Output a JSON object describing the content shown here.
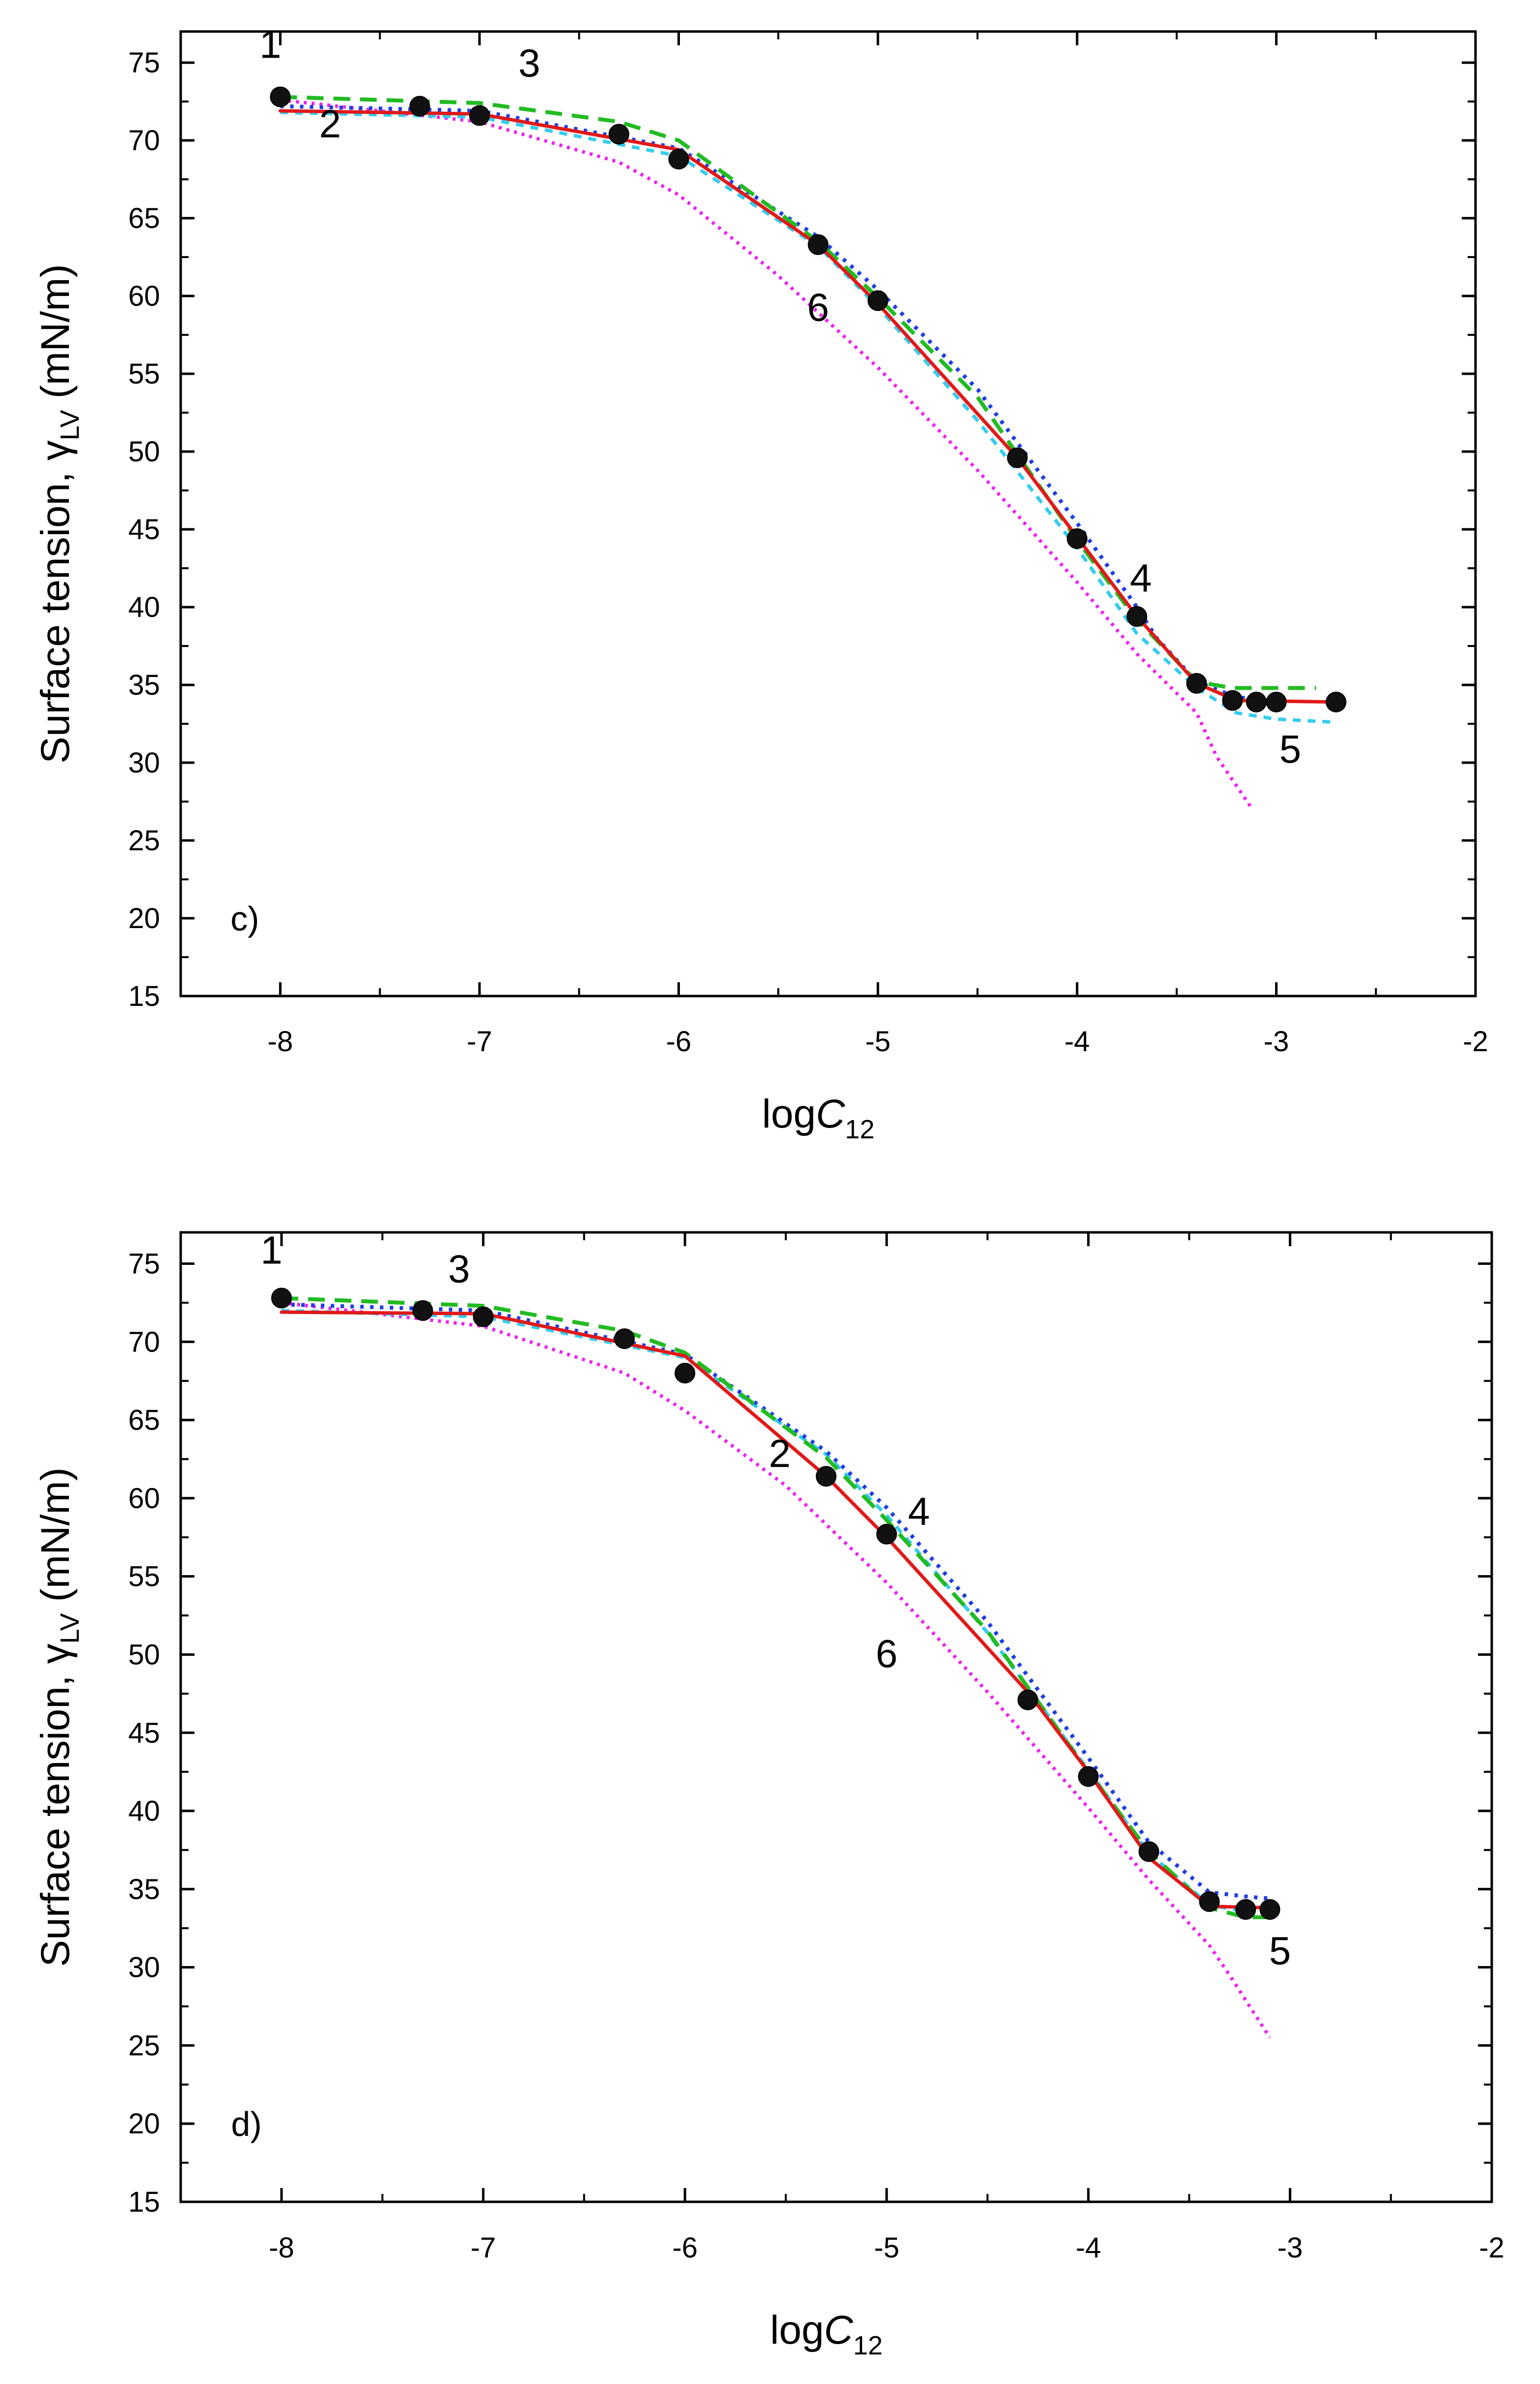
{
  "chart_data": [
    {
      "type": "line",
      "panel": "c)",
      "xlabel_main": "log",
      "xlabel_var": "C",
      "xlabel_sub": "12",
      "ylabel_main": "Surface tension, γ",
      "ylabel_sub": "LV",
      "ylabel_unit": " (mN/m)",
      "xlim": [
        -8.5,
        -2
      ],
      "ylim": [
        15,
        77
      ],
      "xticks": [
        -8,
        -7,
        -6,
        -5,
        -4,
        -3,
        -2
      ],
      "xtick_labels": [
        "-8",
        "-7",
        "-6",
        "-5",
        "-4",
        "-3",
        "-2"
      ],
      "yticks": [
        15,
        20,
        25,
        30,
        35,
        40,
        45,
        50,
        55,
        60,
        65,
        70,
        75
      ],
      "ytick_labels": [
        "15",
        "20",
        "25",
        "30",
        "35",
        "40",
        "45",
        "50",
        "55",
        "60",
        "65",
        "70",
        "75"
      ],
      "points": {
        "x": [
          -8,
          -7.3,
          -7,
          -6.3,
          -6,
          -5.3,
          -5,
          -4.3,
          -4,
          -3.7,
          -3.4,
          -3.22,
          -3.1,
          -3.0,
          -2.7
        ],
        "y": [
          72.8,
          72.2,
          71.6,
          70.4,
          68.8,
          63.3,
          59.7,
          49.6,
          44.4,
          39.4,
          35.1,
          34.0,
          33.9,
          33.9,
          33.9
        ]
      },
      "series": [
        {
          "name": "2",
          "color": "#e11919",
          "dash": "",
          "width": 7,
          "x": [
            -8,
            -7.0,
            -6.0,
            -5.3,
            -5.0,
            -4.3,
            -4.0,
            -3.7,
            -3.4,
            -3.2,
            -2.7
          ],
          "y": [
            71.9,
            71.7,
            69.4,
            63.3,
            59.5,
            49.6,
            44.5,
            39.4,
            35.1,
            34.0,
            33.9
          ]
        },
        {
          "name": "3",
          "color": "#22bb22",
          "dash": "34 20",
          "width": 8,
          "x": [
            -8,
            -7.0,
            -6.3,
            -6.0,
            -5.3,
            -5.0,
            -4.5,
            -4.0,
            -3.7,
            -3.4,
            -3.22,
            -3.0,
            -2.8
          ],
          "y": [
            72.8,
            72.4,
            71.2,
            70.0,
            63.5,
            59.9,
            53.5,
            44.3,
            39.2,
            35.2,
            34.8,
            34.8,
            34.8
          ]
        },
        {
          "name": "4",
          "color": "#1f3ee0",
          "dash": "7 13",
          "width": 8,
          "x": [
            -8,
            -7.0,
            -6.0,
            -5.3,
            -5.0,
            -4.5,
            -4.0,
            -3.7,
            -3.6,
            -3.4,
            -3.2,
            -3.0
          ],
          "y": [
            72.2,
            71.9,
            69.5,
            63.8,
            60.4,
            54.0,
            45.4,
            40.0,
            38.0,
            35.2,
            34.2,
            34.0
          ]
        },
        {
          "name": "5",
          "color": "#33ccee",
          "dash": "16 14",
          "width": 7,
          "x": [
            -8,
            -7.0,
            -6.0,
            -5.3,
            -5.0,
            -4.5,
            -4.0,
            -3.7,
            -3.4,
            -3.2,
            -3.0,
            -2.7
          ],
          "y": [
            71.8,
            71.5,
            69.0,
            63.2,
            59.3,
            52.0,
            43.8,
            38.3,
            34.8,
            33.2,
            32.8,
            32.6
          ]
        },
        {
          "name": "6",
          "color": "#ee22ee",
          "dash": "6 10",
          "width": 7,
          "x": [
            -8,
            -7.0,
            -6.3,
            -6.0,
            -5.5,
            -5.0,
            -4.5,
            -4.0,
            -3.7,
            -3.4,
            -3.3,
            -3.12
          ],
          "y": [
            72.6,
            71.2,
            68.6,
            66.5,
            61.3,
            55.4,
            48.8,
            41.6,
            37.0,
            33.2,
            30.4,
            27.0
          ]
        }
      ],
      "curve_labels": [
        {
          "text": "1",
          "x": -8.05,
          "y": 75.3
        },
        {
          "text": "2",
          "x": -7.75,
          "y": 70.2
        },
        {
          "text": "3",
          "x": -6.75,
          "y": 74.1
        },
        {
          "text": "4",
          "x": -3.68,
          "y": 41.0
        },
        {
          "text": "5",
          "x": -2.93,
          "y": 30.0
        },
        {
          "text": "6",
          "x": -5.3,
          "y": 58.4
        }
      ]
    },
    {
      "type": "line",
      "panel": "d)",
      "xlabel_main": "log",
      "xlabel_var": "C",
      "xlabel_sub": "12",
      "ylabel_main": "Surface tension, γ",
      "ylabel_sub": "LV",
      "ylabel_unit": " (mN/m)",
      "xlim": [
        -8.5,
        -2
      ],
      "ylim": [
        15,
        77
      ],
      "xticks": [
        -8,
        -7,
        -6,
        -5,
        -4,
        -3,
        -2
      ],
      "xtick_labels": [
        "-8",
        "-7",
        "-6",
        "-5",
        "-4",
        "-3",
        "-2"
      ],
      "yticks": [
        15,
        20,
        25,
        30,
        35,
        40,
        45,
        50,
        55,
        60,
        65,
        70,
        75
      ],
      "ytick_labels": [
        "15",
        "20",
        "25",
        "30",
        "35",
        "40",
        "45",
        "50",
        "55",
        "60",
        "65",
        "70",
        "75"
      ],
      "points": {
        "x": [
          -8,
          -7.3,
          -7,
          -6.3,
          -6,
          -5.3,
          -5,
          -4.3,
          -4,
          -3.7,
          -3.4,
          -3.22,
          -3.1
        ],
        "y": [
          72.8,
          72.0,
          71.6,
          70.2,
          68.0,
          61.4,
          57.7,
          47.1,
          42.2,
          37.4,
          34.2,
          33.7,
          33.7
        ]
      },
      "series": [
        {
          "name": "2",
          "color": "#e11919",
          "dash": "",
          "width": 7,
          "x": [
            -8,
            -7.0,
            -6.0,
            -5.3,
            -5.0,
            -4.3,
            -4.0,
            -3.7,
            -3.4,
            -3.1
          ],
          "y": [
            71.9,
            71.8,
            69.1,
            61.4,
            57.5,
            47.6,
            42.5,
            37.0,
            33.9,
            33.8
          ]
        },
        {
          "name": "3",
          "color": "#22bb22",
          "dash": "34 20",
          "width": 8,
          "x": [
            -8,
            -7.0,
            -6.3,
            -6.0,
            -5.3,
            -5.0,
            -4.5,
            -4.0,
            -3.7,
            -3.4,
            -3.22,
            -3.1
          ],
          "y": [
            72.8,
            72.3,
            70.7,
            69.3,
            62.6,
            58.6,
            51.5,
            42.5,
            37.4,
            33.8,
            33.2,
            33.2
          ]
        },
        {
          "name": "4",
          "color": "#1f3ee0",
          "dash": "7 13",
          "width": 8,
          "x": [
            -8,
            -7.0,
            -6.0,
            -5.3,
            -5.0,
            -4.5,
            -4.0,
            -3.7,
            -3.4,
            -3.2,
            -3.1
          ],
          "y": [
            72.4,
            72.0,
            69.2,
            63.0,
            59.4,
            52.1,
            43.4,
            38.0,
            34.8,
            34.5,
            34.4
          ]
        },
        {
          "name": "5",
          "color": "#33ccee",
          "dash": "16 14",
          "width": 7,
          "x": [
            -8,
            -7.0,
            -6.0,
            -5.3,
            -5.0,
            -4.5,
            -4.0,
            -3.7,
            -3.4,
            -3.2,
            -3.1
          ],
          "y": [
            72.0,
            71.6,
            69.0,
            62.8,
            58.9,
            51.4,
            42.6,
            37.3,
            34.0,
            33.5,
            33.4
          ]
        },
        {
          "name": "6",
          "color": "#ee22ee",
          "dash": "6 10",
          "width": 7,
          "x": [
            -8,
            -7.0,
            -6.3,
            -6.0,
            -5.5,
            -5.0,
            -4.5,
            -4.0,
            -3.7,
            -3.4,
            -3.3,
            -3.1
          ],
          "y": [
            72.5,
            71.0,
            68.0,
            65.6,
            60.8,
            54.6,
            47.6,
            40.2,
            35.6,
            31.4,
            29.5,
            25.5
          ]
        }
      ],
      "curve_labels": [
        {
          "text": "1",
          "x": -8.05,
          "y": 75.0
        },
        {
          "text": "2",
          "x": -5.53,
          "y": 62.0
        },
        {
          "text": "3",
          "x": -7.12,
          "y": 73.8
        },
        {
          "text": "4",
          "x": -4.84,
          "y": 58.3
        },
        {
          "text": "5",
          "x": -3.05,
          "y": 30.2
        },
        {
          "text": "6",
          "x": -5.0,
          "y": 49.2
        }
      ]
    }
  ]
}
